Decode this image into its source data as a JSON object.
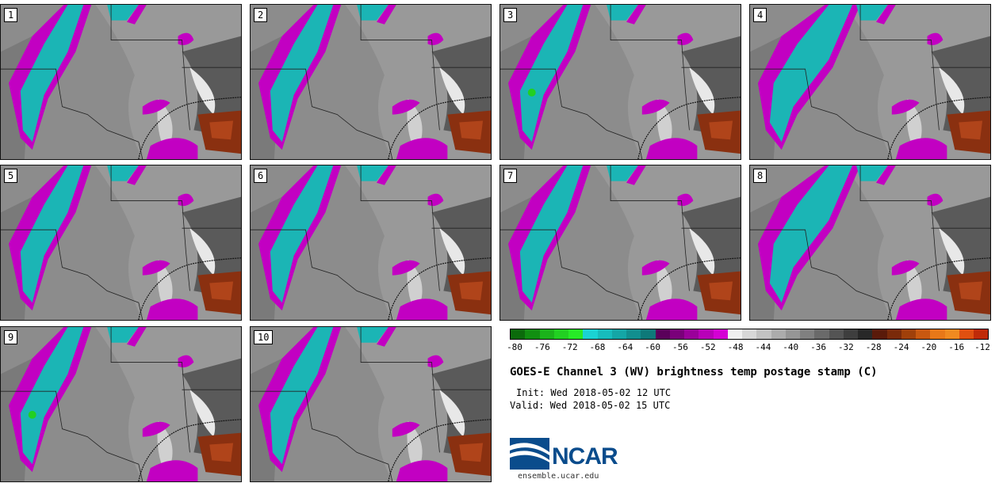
{
  "panels": [
    {
      "label": "1",
      "style": "base"
    },
    {
      "label": "2",
      "style": "base"
    },
    {
      "label": "3",
      "style": "green"
    },
    {
      "label": "4",
      "style": "wide"
    },
    {
      "label": "5",
      "style": "base"
    },
    {
      "label": "6",
      "style": "base"
    },
    {
      "label": "7",
      "style": "base"
    },
    {
      "label": "8",
      "style": "wide"
    },
    {
      "label": "9",
      "style": "green"
    },
    {
      "label": "10",
      "style": "base"
    }
  ],
  "colorbar": {
    "colors": [
      "#0b6b0b",
      "#118f11",
      "#1bb31b",
      "#22d022",
      "#27ea27",
      "#1ad3d3",
      "#17bcbc",
      "#14a6a6",
      "#118f8f",
      "#0e7979",
      "#5a005a",
      "#7a007a",
      "#9a009a",
      "#b800b8",
      "#d400d4",
      "#f0f0f0",
      "#d8d8d8",
      "#c2c2c2",
      "#acacac",
      "#969696",
      "#808080",
      "#6a6a6a",
      "#545454",
      "#3e3e3e",
      "#282828",
      "#5a1a0a",
      "#7a2a0a",
      "#a0400a",
      "#c85810",
      "#e87818",
      "#f08a20",
      "#e05010",
      "#c02a08"
    ],
    "ticks": [
      "-80",
      "-76",
      "-72",
      "-68",
      "-64",
      "-60",
      "-56",
      "-52",
      "-48",
      "-44",
      "-40",
      "-36",
      "-32",
      "-28",
      "-24",
      "-20",
      "-16",
      "-12"
    ],
    "min": -80,
    "max": -12
  },
  "title": "GOES-E Channel 3 (WV) brightness temp postage stamp (C)",
  "init": "Init: Wed 2018-05-02 12 UTC",
  "valid": "Valid: Wed 2018-05-02 15 UTC",
  "logo": {
    "text": "NCAR",
    "url": "ensemble.ucar.edu",
    "color": "#0a4c8c"
  }
}
